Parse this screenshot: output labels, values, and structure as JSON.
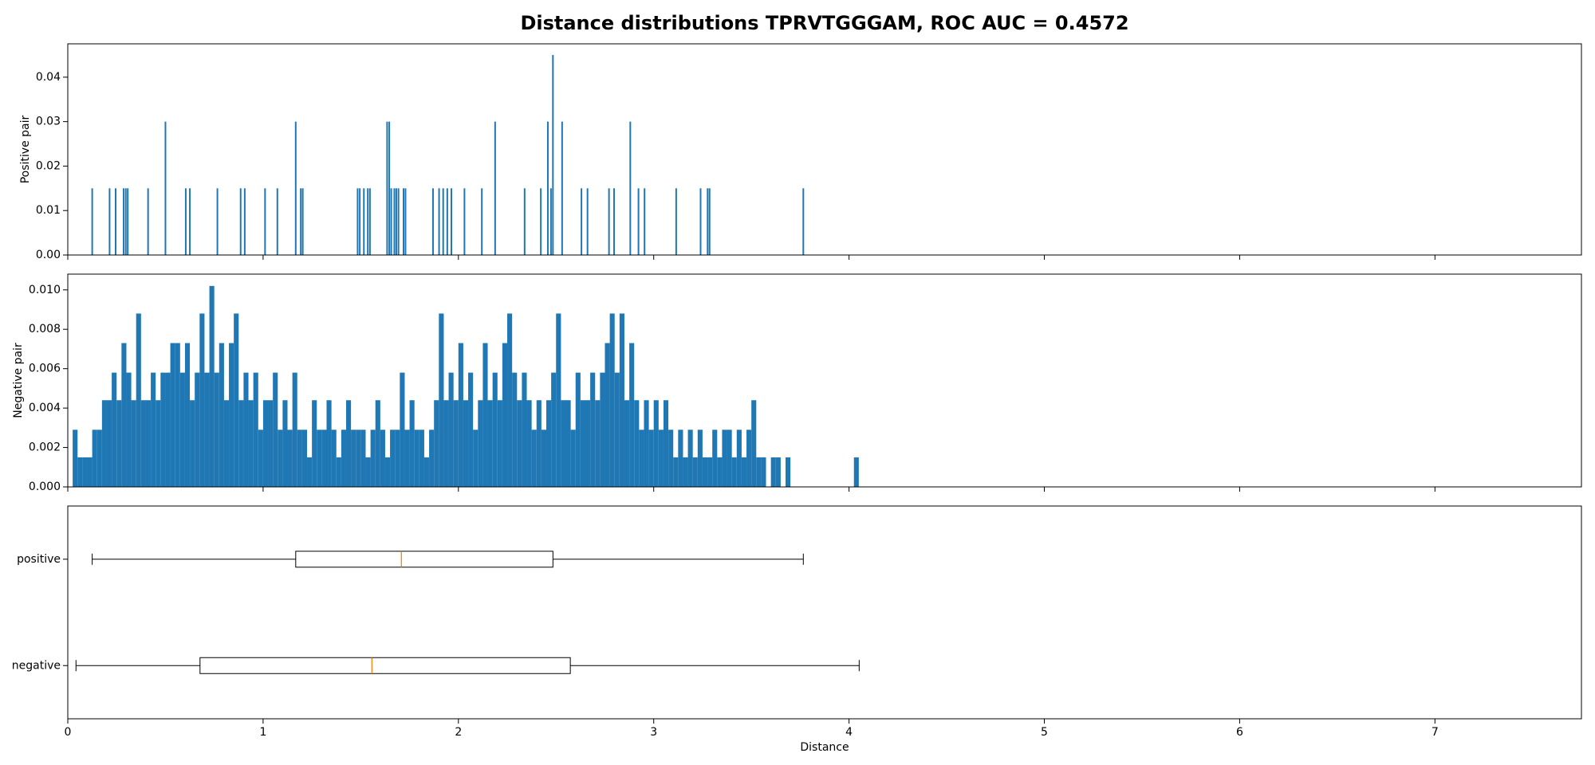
{
  "chart_data": [
    {
      "type": "bar",
      "title": "Distance distributions TPRVTGGGAM, ROC AUC = 0.4572",
      "ylabel": "Positive pair",
      "color": "#1f77b4",
      "x": [
        0.125,
        0.214,
        0.245,
        0.286,
        0.297,
        0.307,
        0.411,
        0.5,
        0.604,
        0.625,
        0.766,
        0.885,
        0.906,
        1.01,
        1.073,
        1.167,
        1.193,
        1.203,
        1.484,
        1.495,
        1.516,
        1.536,
        1.547,
        1.635,
        1.646,
        1.656,
        1.672,
        1.682,
        1.693,
        1.719,
        1.729,
        1.87,
        1.901,
        1.922,
        1.943,
        1.964,
        2.031,
        2.12,
        2.188,
        2.339,
        2.422,
        2.458,
        2.474,
        2.484,
        2.531,
        2.63,
        2.661,
        2.771,
        2.797,
        2.88,
        2.922,
        2.953,
        3.115,
        3.24,
        3.276,
        3.286,
        3.766
      ],
      "values": [
        0.015,
        0.015,
        0.015,
        0.015,
        0.015,
        0.015,
        0.015,
        0.03,
        0.015,
        0.015,
        0.015,
        0.015,
        0.015,
        0.015,
        0.015,
        0.03,
        0.015,
        0.015,
        0.015,
        0.015,
        0.015,
        0.015,
        0.015,
        0.03,
        0.03,
        0.015,
        0.015,
        0.015,
        0.015,
        0.015,
        0.015,
        0.015,
        0.015,
        0.015,
        0.015,
        0.015,
        0.015,
        0.015,
        0.03,
        0.015,
        0.015,
        0.03,
        0.015,
        0.045,
        0.03,
        0.015,
        0.015,
        0.015,
        0.015,
        0.03,
        0.015,
        0.015,
        0.015,
        0.015,
        0.015,
        0.015,
        0.015
      ],
      "xlim": [
        0,
        7.75
      ],
      "ylim": [
        0,
        0.0475
      ],
      "yticks": [
        {
          "value": 0,
          "label": "0.00"
        },
        {
          "value": 0.01,
          "label": "0.01"
        },
        {
          "value": 0.02,
          "label": "0.02"
        },
        {
          "value": 0.03,
          "label": "0.03"
        },
        {
          "value": 0.04,
          "label": "0.04"
        }
      ]
    },
    {
      "type": "histogram",
      "ylabel": "Negative pair",
      "color": "#1f77b4",
      "bins": [
        0.025,
        0.05,
        0.075,
        0.1,
        0.125,
        0.15,
        0.175,
        0.2,
        0.225,
        0.25,
        0.275,
        0.3,
        0.325,
        0.35,
        0.375,
        0.4,
        0.425,
        0.45,
        0.475,
        0.5,
        0.525,
        0.55,
        0.575,
        0.6,
        0.625,
        0.65,
        0.675,
        0.7,
        0.725,
        0.75,
        0.775,
        0.8,
        0.825,
        0.85,
        0.875,
        0.9,
        0.925,
        0.95,
        0.975,
        1.0,
        1.025,
        1.05,
        1.075,
        1.1,
        1.125,
        1.15,
        1.175,
        1.2,
        1.225,
        1.25,
        1.275,
        1.3,
        1.325,
        1.35,
        1.375,
        1.4,
        1.425,
        1.45,
        1.475,
        1.5,
        1.525,
        1.55,
        1.575,
        1.6,
        1.625,
        1.65,
        1.675,
        1.7,
        1.725,
        1.75,
        1.775,
        1.8,
        1.825,
        1.85,
        1.875,
        1.9,
        1.925,
        1.95,
        1.975,
        2.0,
        2.025,
        2.05,
        2.075,
        2.1,
        2.125,
        2.15,
        2.175,
        2.2,
        2.225,
        2.25,
        2.275,
        2.3,
        2.325,
        2.35,
        2.375,
        2.4,
        2.425,
        2.45,
        2.475,
        2.5,
        2.525,
        2.55,
        2.575,
        2.6,
        2.625,
        2.65,
        2.675,
        2.7,
        2.725,
        2.75,
        2.775,
        2.8,
        2.825,
        2.85,
        2.875,
        2.9,
        2.925,
        2.95,
        2.975,
        3.0,
        3.025,
        3.05,
        3.075,
        3.1,
        3.125,
        3.15,
        3.175,
        3.2,
        3.225,
        3.25,
        3.275,
        3.3,
        3.325,
        3.35,
        3.375,
        3.4,
        3.425,
        3.45,
        3.475,
        3.5,
        3.525,
        3.55,
        3.575,
        3.6,
        3.625,
        3.65,
        3.675,
        3.7,
        3.725,
        3.75,
        3.775,
        3.8,
        3.825,
        3.85,
        3.875,
        3.9,
        3.925,
        3.95,
        3.975,
        4.0,
        4.025,
        4.05
      ],
      "values": [
        0.0029,
        0.0015,
        0.0015,
        0.0015,
        0.0029,
        0.0029,
        0.0044,
        0.0044,
        0.0058,
        0.0044,
        0.0073,
        0.0058,
        0.0044,
        0.0088,
        0.0044,
        0.0044,
        0.0058,
        0.0044,
        0.0058,
        0.0058,
        0.0073,
        0.0073,
        0.0058,
        0.0073,
        0.0044,
        0.0058,
        0.0088,
        0.0058,
        0.0102,
        0.0058,
        0.0073,
        0.0044,
        0.0073,
        0.0088,
        0.0044,
        0.0058,
        0.0044,
        0.0058,
        0.0029,
        0.0044,
        0.0044,
        0.0058,
        0.0029,
        0.0044,
        0.0029,
        0.0058,
        0.0029,
        0.0029,
        0.0015,
        0.0044,
        0.0029,
        0.0029,
        0.0044,
        0.0029,
        0.0015,
        0.0029,
        0.0044,
        0.0029,
        0.0029,
        0.0029,
        0.0015,
        0.0029,
        0.0044,
        0.0029,
        0.0015,
        0.0029,
        0.0029,
        0.0058,
        0.0029,
        0.0044,
        0.0029,
        0.0029,
        0.0015,
        0.0029,
        0.0044,
        0.0088,
        0.0044,
        0.0058,
        0.0044,
        0.0073,
        0.0044,
        0.0058,
        0.0029,
        0.0044,
        0.0073,
        0.0044,
        0.0058,
        0.0044,
        0.0073,
        0.0088,
        0.0058,
        0.0044,
        0.0058,
        0.0044,
        0.0029,
        0.0044,
        0.0029,
        0.0044,
        0.0058,
        0.0088,
        0.0044,
        0.0044,
        0.0029,
        0.0058,
        0.0044,
        0.0044,
        0.0058,
        0.0044,
        0.0058,
        0.0073,
        0.0088,
        0.0058,
        0.0088,
        0.0044,
        0.0073,
        0.0044,
        0.0029,
        0.0044,
        0.0029,
        0.0044,
        0.0029,
        0.0044,
        0.0029,
        0.0015,
        0.0029,
        0.0015,
        0.0029,
        0.0015,
        0.0029,
        0.0015,
        0.0015,
        0.0029,
        0.0015,
        0.0029,
        0.0029,
        0.0015,
        0.0029,
        0.0015,
        0.0029,
        0.0044,
        0.0015,
        0.0015,
        0,
        0.0015,
        0.0015,
        0,
        0.0015,
        0,
        0,
        0,
        0,
        0,
        0,
        0,
        0,
        0,
        0,
        0,
        0,
        0,
        0.0015
      ],
      "xlim": [
        0,
        7.75
      ],
      "ylim": [
        0,
        0.0108
      ],
      "yticks": [
        {
          "value": 0,
          "label": "0.000"
        },
        {
          "value": 0.002,
          "label": "0.002"
        },
        {
          "value": 0.004,
          "label": "0.004"
        },
        {
          "value": 0.006,
          "label": "0.006"
        },
        {
          "value": 0.008,
          "label": "0.008"
        },
        {
          "value": 0.01,
          "label": "0.010"
        }
      ]
    },
    {
      "type": "boxplot",
      "xlabel": "Distance",
      "color": "#000000",
      "median_color": "#ff7f0e",
      "boxes": [
        {
          "label": "positive",
          "whislo": 0.125,
          "q1": 1.167,
          "med": 1.708,
          "q3": 2.484,
          "whishi": 3.766
        },
        {
          "label": "negative",
          "whislo": 0.042,
          "q1": 0.677,
          "med": 1.557,
          "q3": 2.573,
          "whishi": 4.052
        }
      ],
      "xlim": [
        0,
        7.75
      ],
      "xticks": [
        0,
        1,
        2,
        3,
        4,
        5,
        6,
        7
      ]
    }
  ]
}
